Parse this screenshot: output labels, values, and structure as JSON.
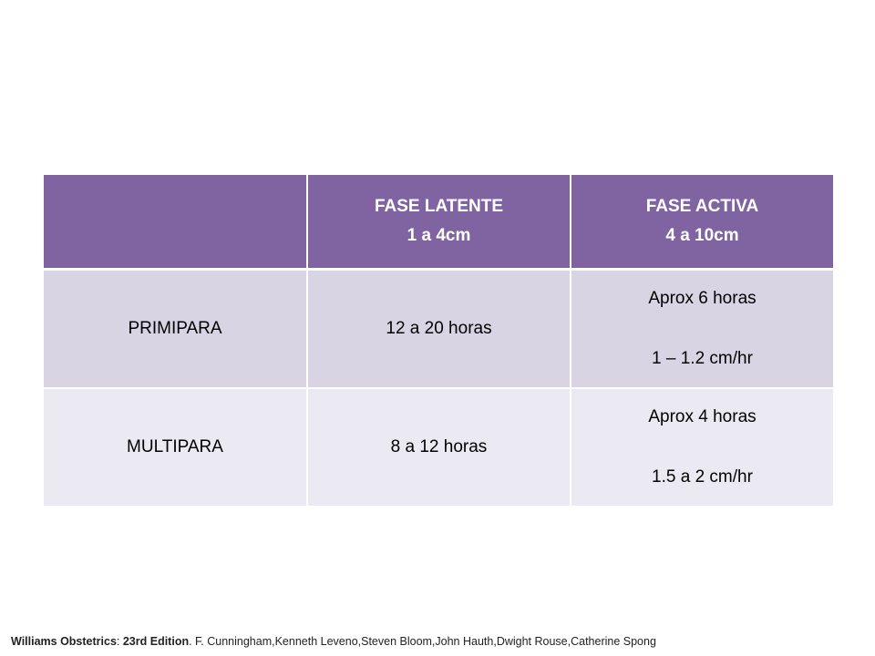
{
  "table": {
    "header": {
      "corner": "",
      "latent_line1": "FASE LATENTE",
      "latent_line2": "1 a 4cm",
      "active_line1": "FASE ACTIVA",
      "active_line2": "4 a 10cm"
    },
    "rows": [
      {
        "label": "PRIMIPARA",
        "latent": "12 a 20 horas",
        "active_line1": "Aprox 6 horas",
        "active_line2": "1 – 1.2 cm/hr"
      },
      {
        "label": "MULTIPARA",
        "latent": "8 a 12 horas",
        "active_line1": "Aprox 4 horas",
        "active_line2": "1.5 a 2 cm/hr"
      }
    ]
  },
  "footer": {
    "book": "Williams Obstetrics",
    "sep": ": ",
    "edition": "23rd Edition",
    "authors": ". F. Cunningham,Kenneth Leveno,Steven Bloom,John Hauth,Dwight Rouse,Catherine Spong"
  },
  "colors": {
    "header_bg": "#8064a2",
    "row_odd_bg": "#d9d4e4",
    "row_even_bg": "#ebe9f1"
  }
}
